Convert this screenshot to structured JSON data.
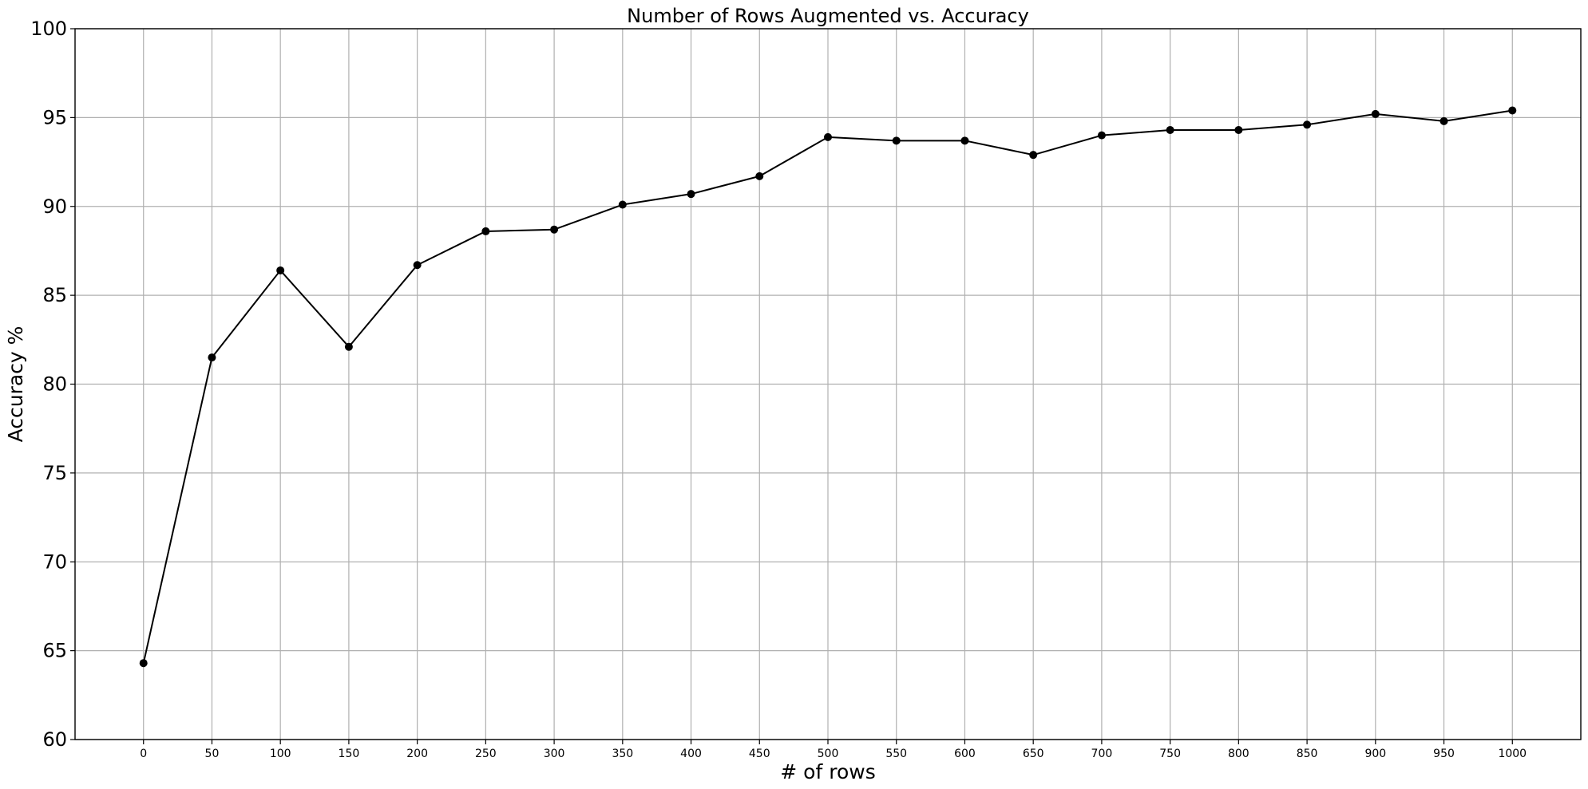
{
  "chart_data": {
    "type": "line",
    "title": "Number of Rows Augmented vs. Accuracy",
    "xlabel": "# of rows",
    "ylabel": "Accuracy %",
    "x": [
      0,
      50,
      100,
      150,
      200,
      250,
      300,
      350,
      400,
      450,
      500,
      550,
      600,
      650,
      700,
      750,
      800,
      850,
      900,
      950,
      1000
    ],
    "xticks": [
      "0",
      "50",
      "100",
      "150",
      "200",
      "250",
      "300",
      "350",
      "400",
      "450",
      "500",
      "550",
      "600",
      "650",
      "700",
      "750",
      "800",
      "850",
      "900",
      "950",
      "1000"
    ],
    "yticks": [
      "60",
      "65",
      "70",
      "75",
      "80",
      "85",
      "90",
      "95",
      "100"
    ],
    "xlim": [
      -50,
      1050
    ],
    "ylim": [
      60,
      100
    ],
    "grid": true,
    "series": [
      {
        "color": "#000000",
        "marker": "circle",
        "values": [
          64.3,
          81.5,
          86.4,
          82.1,
          86.7,
          88.6,
          88.7,
          90.1,
          90.7,
          91.7,
          93.9,
          93.7,
          93.7,
          92.9,
          94.0,
          94.3,
          94.3,
          94.6,
          95.2,
          94.8,
          95.4
        ]
      }
    ]
  }
}
